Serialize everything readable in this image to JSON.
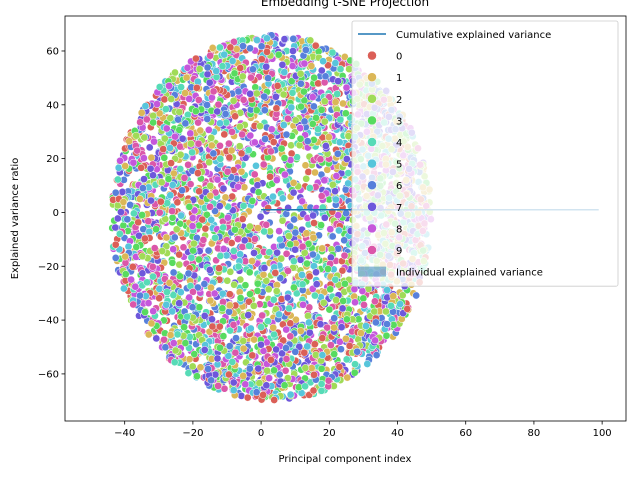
{
  "chart_data": {
    "type": "scatter",
    "title": "Embedding t-SNE Projection",
    "xlabel": "Principal component index",
    "ylabel": "Explained variance ratio",
    "xlim": [
      -57.5,
      107
    ],
    "ylim": [
      -77.5,
      73
    ],
    "xticks": [
      -40,
      -20,
      0,
      20,
      40,
      60,
      80,
      100
    ],
    "yticks": [
      -60,
      -40,
      -20,
      0,
      20,
      40,
      60
    ],
    "grid": false,
    "legend_placement": "top-right",
    "cloud": {
      "cx": 3,
      "cy": -2,
      "rx": 47,
      "ry": 68,
      "points_per_class": 420
    },
    "palette": [
      "#db5f57",
      "#dbb757",
      "#a0db57",
      "#57db5f",
      "#57dbb7",
      "#57c5db",
      "#5780db",
      "#6e57db",
      "#c557db",
      "#db57a9"
    ],
    "classes": [
      "0",
      "1",
      "2",
      "3",
      "4",
      "5",
      "6",
      "7",
      "8",
      "9"
    ],
    "line_series": {
      "name": "Cumulative explained variance",
      "color": "#1f77b4",
      "x": [
        0,
        99
      ],
      "y": [
        1.0,
        1.0
      ]
    },
    "bar_series": {
      "name": "Individual explained variance",
      "color": "#1f77b4",
      "x": [
        0,
        1,
        2,
        3,
        4,
        5
      ],
      "values": [
        0.42,
        0.06,
        0.02,
        0.01,
        0.005,
        0.003
      ]
    },
    "legend": [
      {
        "label": "Cumulative explained variance",
        "kind": "line",
        "color": "#1f77b4"
      },
      {
        "label": "0",
        "kind": "marker",
        "color": "#db5f57"
      },
      {
        "label": "1",
        "kind": "marker",
        "color": "#dbb757"
      },
      {
        "label": "2",
        "kind": "marker",
        "color": "#a0db57"
      },
      {
        "label": "3",
        "kind": "marker",
        "color": "#57db5f"
      },
      {
        "label": "4",
        "kind": "marker",
        "color": "#57dbb7"
      },
      {
        "label": "5",
        "kind": "marker",
        "color": "#57c5db"
      },
      {
        "label": "6",
        "kind": "marker",
        "color": "#5780db"
      },
      {
        "label": "7",
        "kind": "marker",
        "color": "#6e57db"
      },
      {
        "label": "8",
        "kind": "marker",
        "color": "#c557db"
      },
      {
        "label": "9",
        "kind": "marker",
        "color": "#db57a9"
      },
      {
        "label": "Individual explained variance",
        "kind": "patch",
        "color": "#1f77b4"
      }
    ]
  }
}
